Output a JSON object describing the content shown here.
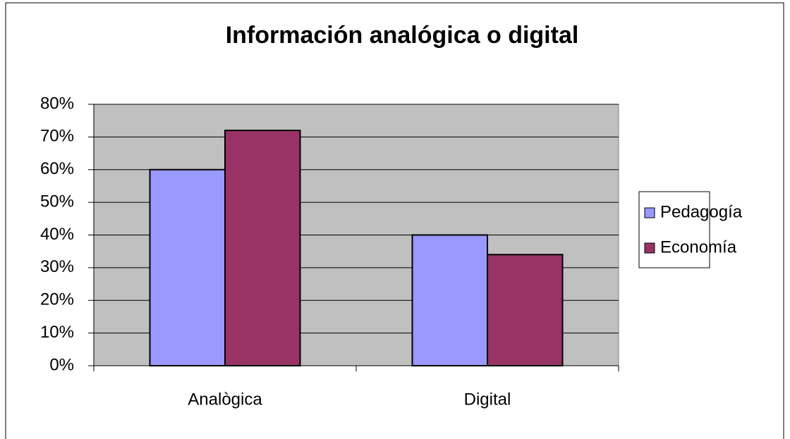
{
  "chart_data": {
    "type": "bar",
    "title": "Información analógica o digital",
    "categories": [
      "Analògica",
      "Digital"
    ],
    "series": [
      {
        "name": "Pedagogía",
        "color": "#9999ff",
        "values": [
          60,
          40
        ]
      },
      {
        "name": "Economía",
        "color": "#993366",
        "values": [
          72,
          34
        ]
      }
    ],
    "ylim": [
      0,
      80
    ],
    "yticks": [
      {
        "value": 0,
        "label": "0%"
      },
      {
        "value": 10,
        "label": "10%"
      },
      {
        "value": 20,
        "label": "20%"
      },
      {
        "value": 30,
        "label": "30%"
      },
      {
        "value": 40,
        "label": "40%"
      },
      {
        "value": 50,
        "label": "50%"
      },
      {
        "value": 60,
        "label": "60%"
      },
      {
        "value": 70,
        "label": "70%"
      },
      {
        "value": 80,
        "label": "80%"
      }
    ],
    "grid": true,
    "legend": "right",
    "plot_background": "#c0c0c0"
  }
}
